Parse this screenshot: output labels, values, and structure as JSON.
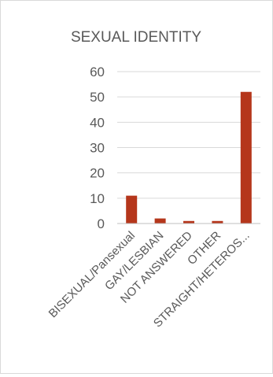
{
  "chart_data": {
    "type": "bar",
    "title": "SEXUAL IDENTITY",
    "xlabel": "",
    "ylabel": "",
    "categories": [
      "BISEXUAL/Pansexual",
      "GAY/LESBIAN",
      "NOT ANSWERED",
      "OTHER",
      "STRAIGHT/HETEROS..."
    ],
    "values": [
      11,
      2,
      1,
      1,
      52
    ],
    "yticks": [
      0,
      10,
      20,
      30,
      40,
      50,
      60
    ],
    "ylim": [
      0,
      60
    ],
    "grid": true,
    "legend": "none",
    "colors": {
      "bar": "#B5361B",
      "grid": "#d9d9d9",
      "text": "#595959",
      "axis": "#bfbfbf"
    }
  }
}
